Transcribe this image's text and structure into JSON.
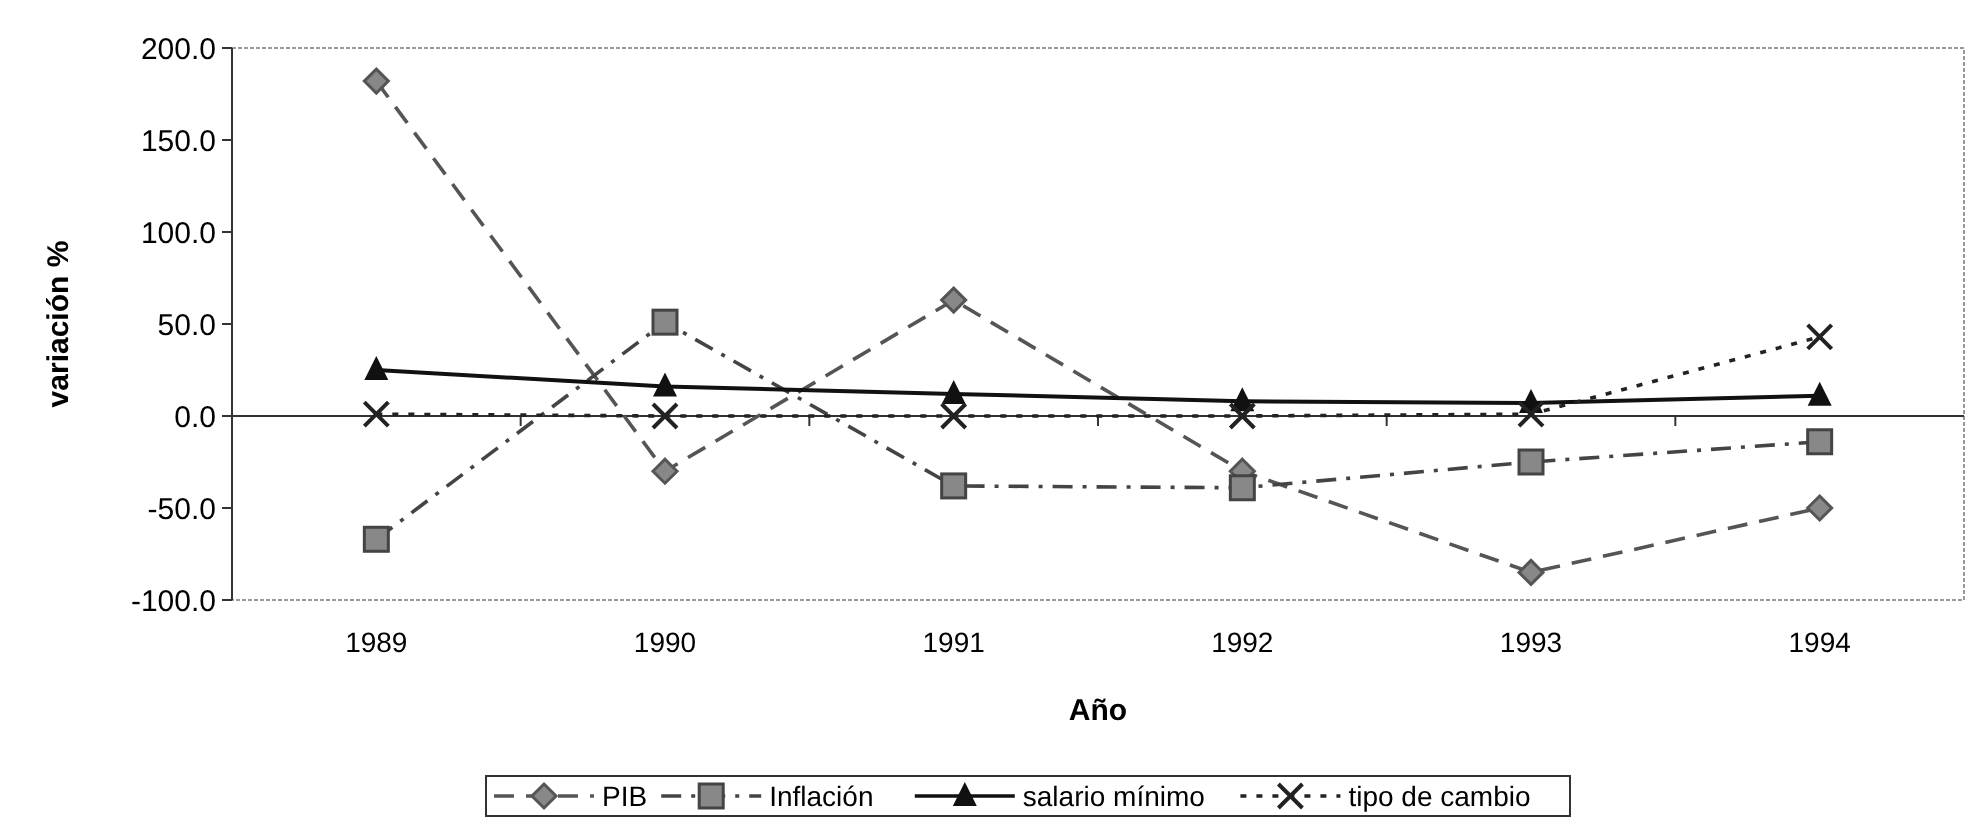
{
  "chart_data": {
    "type": "line",
    "xlabel": "Año",
    "ylabel": "variación %",
    "categories": [
      "1989",
      "1990",
      "1991",
      "1992",
      "1993",
      "1994"
    ],
    "series": [
      {
        "name": "PIB",
        "color": "#555555",
        "marker": "diamond",
        "line_style": "dashed",
        "values": [
          182,
          -30,
          63,
          -30,
          -85,
          -50
        ]
      },
      {
        "name": "Inflación",
        "color": "#444444",
        "marker": "square",
        "line_style": "dashdot",
        "values": [
          -67,
          51,
          -38,
          -39,
          -25,
          -14
        ]
      },
      {
        "name": "salario mínimo",
        "color": "#111111",
        "marker": "triangle",
        "line_style": "solid",
        "values": [
          25,
          16,
          12,
          8,
          7,
          11
        ]
      },
      {
        "name": "tipo de cambio",
        "color": "#222222",
        "marker": "cross",
        "line_style": "dotted",
        "values": [
          1,
          0,
          0,
          0,
          1,
          43
        ]
      }
    ],
    "ylim": [
      -100,
      200
    ],
    "yticks": [
      {
        "value": -100,
        "label": "-100.0"
      },
      {
        "value": -50,
        "label": "-50.0"
      },
      {
        "value": 0,
        "label": "0.0"
      },
      {
        "value": 50,
        "label": "50.0"
      },
      {
        "value": 100,
        "label": "100.0"
      },
      {
        "value": 150,
        "label": "150.0"
      },
      {
        "value": 200,
        "label": "200.0"
      }
    ],
    "ref_lines": [
      {
        "axis": "y",
        "value": 0,
        "color": "#333333"
      }
    ],
    "grid": false,
    "legend": "bottom"
  }
}
